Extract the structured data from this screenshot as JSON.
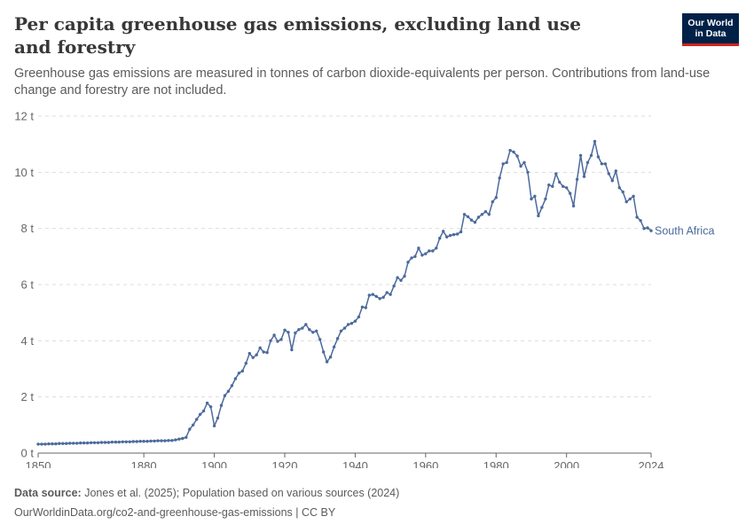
{
  "header": {
    "title": "Per capita greenhouse gas emissions, excluding land use and forestry",
    "subtitle": "Greenhouse gas emissions are measured in tonnes of carbon dioxide-equivalents per person. Contributions from land-use change and forestry are not included.",
    "logo_line1": "Our World",
    "logo_line2": "in Data"
  },
  "footer": {
    "source_label": "Data source:",
    "source_text": "Jones et al. (2025); Population based on various sources (2024)",
    "url_text": "OurWorldinData.org/co2-and-greenhouse-gas-emissions | CC BY"
  },
  "colors": {
    "series": "#4c6a9c",
    "grid": "#dddddd",
    "axis": "#666666"
  },
  "chart_data": {
    "type": "line",
    "title": "Per capita greenhouse gas emissions, excluding land use and forestry",
    "xlabel": "",
    "ylabel": "",
    "xlim": [
      1850,
      2024
    ],
    "ylim": [
      0,
      12
    ],
    "x_ticks": [
      1850,
      1880,
      1900,
      1920,
      1940,
      1960,
      1980,
      2000,
      2024
    ],
    "x_tick_labels": [
      "1850",
      "1880",
      "1900",
      "1920",
      "1940",
      "1960",
      "1980",
      "2000",
      "2024"
    ],
    "y_ticks": [
      0,
      2,
      4,
      6,
      8,
      10,
      12
    ],
    "y_tick_labels": [
      "0 t",
      "2 t",
      "4 t",
      "6 t",
      "8 t",
      "10 t",
      "12 t"
    ],
    "grid": "horizontal dashed",
    "legend": "end-of-line label",
    "series": [
      {
        "name": "South Africa",
        "points": [
          [
            1850,
            0.32
          ],
          [
            1851,
            0.32
          ],
          [
            1852,
            0.32
          ],
          [
            1853,
            0.33
          ],
          [
            1854,
            0.33
          ],
          [
            1855,
            0.33
          ],
          [
            1856,
            0.34
          ],
          [
            1857,
            0.34
          ],
          [
            1858,
            0.34
          ],
          [
            1859,
            0.35
          ],
          [
            1860,
            0.35
          ],
          [
            1861,
            0.35
          ],
          [
            1862,
            0.36
          ],
          [
            1863,
            0.36
          ],
          [
            1864,
            0.36
          ],
          [
            1865,
            0.37
          ],
          [
            1866,
            0.37
          ],
          [
            1867,
            0.37
          ],
          [
            1868,
            0.38
          ],
          [
            1869,
            0.38
          ],
          [
            1870,
            0.38
          ],
          [
            1871,
            0.39
          ],
          [
            1872,
            0.39
          ],
          [
            1873,
            0.39
          ],
          [
            1874,
            0.4
          ],
          [
            1875,
            0.4
          ],
          [
            1876,
            0.4
          ],
          [
            1877,
            0.41
          ],
          [
            1878,
            0.41
          ],
          [
            1879,
            0.42
          ],
          [
            1880,
            0.42
          ],
          [
            1881,
            0.42
          ],
          [
            1882,
            0.43
          ],
          [
            1883,
            0.43
          ],
          [
            1884,
            0.44
          ],
          [
            1885,
            0.44
          ],
          [
            1886,
            0.44
          ],
          [
            1887,
            0.45
          ],
          [
            1888,
            0.45
          ],
          [
            1889,
            0.47
          ],
          [
            1890,
            0.5
          ],
          [
            1891,
            0.52
          ],
          [
            1892,
            0.56
          ],
          [
            1893,
            0.85
          ],
          [
            1894,
            1.0
          ],
          [
            1895,
            1.2
          ],
          [
            1896,
            1.38
          ],
          [
            1897,
            1.5
          ],
          [
            1898,
            1.78
          ],
          [
            1899,
            1.65
          ],
          [
            1900,
            0.97
          ],
          [
            1901,
            1.25
          ],
          [
            1902,
            1.7
          ],
          [
            1903,
            2.05
          ],
          [
            1904,
            2.2
          ],
          [
            1905,
            2.4
          ],
          [
            1906,
            2.65
          ],
          [
            1907,
            2.85
          ],
          [
            1908,
            2.92
          ],
          [
            1909,
            3.2
          ],
          [
            1910,
            3.55
          ],
          [
            1911,
            3.4
          ],
          [
            1912,
            3.5
          ],
          [
            1913,
            3.75
          ],
          [
            1914,
            3.6
          ],
          [
            1915,
            3.58
          ],
          [
            1916,
            4.0
          ],
          [
            1917,
            4.2
          ],
          [
            1918,
            3.98
          ],
          [
            1919,
            4.05
          ],
          [
            1920,
            4.38
          ],
          [
            1921,
            4.3
          ],
          [
            1922,
            3.68
          ],
          [
            1923,
            4.28
          ],
          [
            1924,
            4.4
          ],
          [
            1925,
            4.45
          ],
          [
            1926,
            4.58
          ],
          [
            1927,
            4.4
          ],
          [
            1928,
            4.3
          ],
          [
            1929,
            4.35
          ],
          [
            1930,
            4.05
          ],
          [
            1931,
            3.6
          ],
          [
            1932,
            3.25
          ],
          [
            1933,
            3.42
          ],
          [
            1934,
            3.78
          ],
          [
            1935,
            4.08
          ],
          [
            1936,
            4.35
          ],
          [
            1937,
            4.45
          ],
          [
            1938,
            4.58
          ],
          [
            1939,
            4.62
          ],
          [
            1940,
            4.7
          ],
          [
            1941,
            4.85
          ],
          [
            1942,
            5.2
          ],
          [
            1943,
            5.18
          ],
          [
            1944,
            5.62
          ],
          [
            1945,
            5.65
          ],
          [
            1946,
            5.58
          ],
          [
            1947,
            5.5
          ],
          [
            1948,
            5.55
          ],
          [
            1949,
            5.72
          ],
          [
            1950,
            5.65
          ],
          [
            1951,
            5.95
          ],
          [
            1952,
            6.25
          ],
          [
            1953,
            6.15
          ],
          [
            1954,
            6.3
          ],
          [
            1955,
            6.8
          ],
          [
            1956,
            6.95
          ],
          [
            1957,
            7.0
          ],
          [
            1958,
            7.3
          ],
          [
            1959,
            7.05
          ],
          [
            1960,
            7.1
          ],
          [
            1961,
            7.2
          ],
          [
            1962,
            7.2
          ],
          [
            1963,
            7.3
          ],
          [
            1964,
            7.65
          ],
          [
            1965,
            7.9
          ],
          [
            1966,
            7.7
          ],
          [
            1967,
            7.75
          ],
          [
            1968,
            7.78
          ],
          [
            1969,
            7.8
          ],
          [
            1970,
            7.88
          ],
          [
            1971,
            8.5
          ],
          [
            1972,
            8.42
          ],
          [
            1973,
            8.3
          ],
          [
            1974,
            8.22
          ],
          [
            1975,
            8.4
          ],
          [
            1976,
            8.5
          ],
          [
            1977,
            8.6
          ],
          [
            1978,
            8.5
          ],
          [
            1979,
            8.95
          ],
          [
            1980,
            9.1
          ],
          [
            1981,
            9.8
          ],
          [
            1982,
            10.3
          ],
          [
            1983,
            10.35
          ],
          [
            1984,
            10.78
          ],
          [
            1985,
            10.72
          ],
          [
            1986,
            10.58
          ],
          [
            1987,
            10.22
          ],
          [
            1988,
            10.35
          ],
          [
            1989,
            10.0
          ],
          [
            1990,
            9.05
          ],
          [
            1991,
            9.15
          ],
          [
            1992,
            8.45
          ],
          [
            1993,
            8.75
          ],
          [
            1994,
            9.05
          ],
          [
            1995,
            9.55
          ],
          [
            1996,
            9.5
          ],
          [
            1997,
            9.95
          ],
          [
            1998,
            9.65
          ],
          [
            1999,
            9.5
          ],
          [
            2000,
            9.45
          ],
          [
            2001,
            9.25
          ],
          [
            2002,
            8.8
          ],
          [
            2003,
            9.75
          ],
          [
            2004,
            10.6
          ],
          [
            2005,
            9.85
          ],
          [
            2006,
            10.35
          ],
          [
            2007,
            10.6
          ],
          [
            2008,
            11.1
          ],
          [
            2009,
            10.55
          ],
          [
            2010,
            10.3
          ],
          [
            2011,
            10.3
          ],
          [
            2012,
            9.95
          ],
          [
            2013,
            9.7
          ],
          [
            2014,
            10.05
          ],
          [
            2015,
            9.45
          ],
          [
            2016,
            9.3
          ],
          [
            2017,
            8.95
          ],
          [
            2018,
            9.05
          ],
          [
            2019,
            9.15
          ],
          [
            2020,
            8.4
          ],
          [
            2021,
            8.28
          ],
          [
            2022,
            8.0
          ],
          [
            2023,
            8.02
          ],
          [
            2024,
            7.92
          ]
        ]
      }
    ]
  }
}
